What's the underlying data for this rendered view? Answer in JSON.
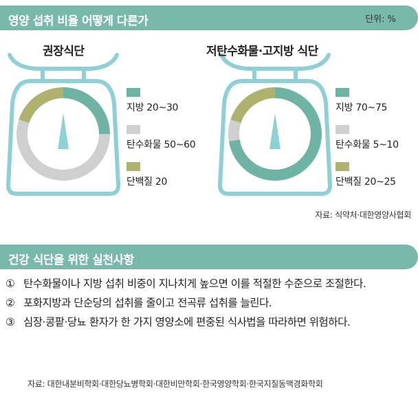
{
  "header": {
    "title": "영양 섭취 비율 어떻게 다른가",
    "unit": "단위: %"
  },
  "colors": {
    "fat": "#6fb3a4",
    "carb": "#cfcfcf",
    "protein": "#aeb26e",
    "accent": "#78b9ab",
    "scale": "#8fcfd6"
  },
  "chart_data": [
    {
      "type": "pie",
      "title": "권장식단",
      "categories": [
        "지방",
        "탄수화물",
        "단백질"
      ],
      "values": [
        25,
        55,
        20
      ],
      "legend": [
        "지방 20~30",
        "탄수화물 50~60",
        "단백질 20"
      ]
    },
    {
      "type": "pie",
      "title": "저탄수화물·고지방 식단",
      "categories": [
        "지방",
        "탄수화물",
        "단백질"
      ],
      "values": [
        72.5,
        7.5,
        20
      ],
      "legend": [
        "지방 70~75",
        "탄수화물 5~10",
        "단백질 20~25"
      ]
    }
  ],
  "source1": "자료: 식약처·대한영양사협회",
  "tips": {
    "title": "건강 식단을 위한 실천사항",
    "items": [
      {
        "num": "①",
        "text": "탄수화물이나 지방 섭취 비중이 지나치게 높으면 이를 적절한 수준으로 조절한다."
      },
      {
        "num": "②",
        "text": "포화지방과 단순당의 섭취를 줄이고 전곡류 섭취를 늘린다."
      },
      {
        "num": "③",
        "text": "심장·콩팥·당뇨 환자가 한 가지 영양소에 편중된 식사법을 따라하면 위험하다."
      }
    ]
  },
  "source2": "자료: 대한내분비학회·대한당뇨병학회·대한비만학회·한국영양학회·한국지질동맥경화학회"
}
